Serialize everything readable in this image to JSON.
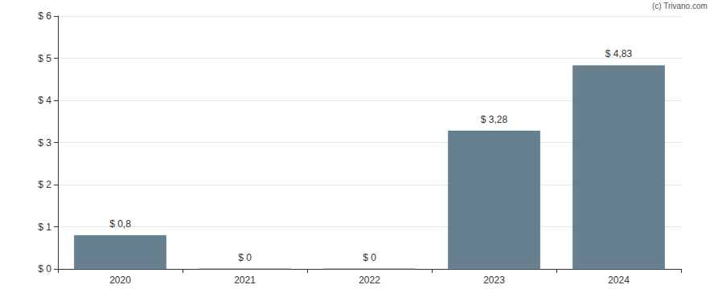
{
  "chart_data": {
    "type": "bar",
    "annotations": [
      "(c) Trivano.com"
    ],
    "categories": [
      "2020",
      "2021",
      "2022",
      "2023",
      "2024"
    ],
    "values": [
      0.8,
      0,
      0,
      3.28,
      4.83
    ],
    "value_labels": [
      "$ 0,8",
      "$ 0",
      "$ 0",
      "$ 3,28",
      "$ 4,83"
    ],
    "data_labels": true,
    "color": "#66808f",
    "ylim": [
      0,
      6
    ],
    "yticks": [
      {
        "value": 0,
        "label": "$ 0"
      },
      {
        "value": 1,
        "label": "$ 1"
      },
      {
        "value": 2,
        "label": "$ 2"
      },
      {
        "value": 3,
        "label": "$ 3"
      },
      {
        "value": 4,
        "label": "$ 4"
      },
      {
        "value": 5,
        "label": "$ 5"
      },
      {
        "value": 6,
        "label": "$ 6"
      }
    ],
    "grid": true
  }
}
